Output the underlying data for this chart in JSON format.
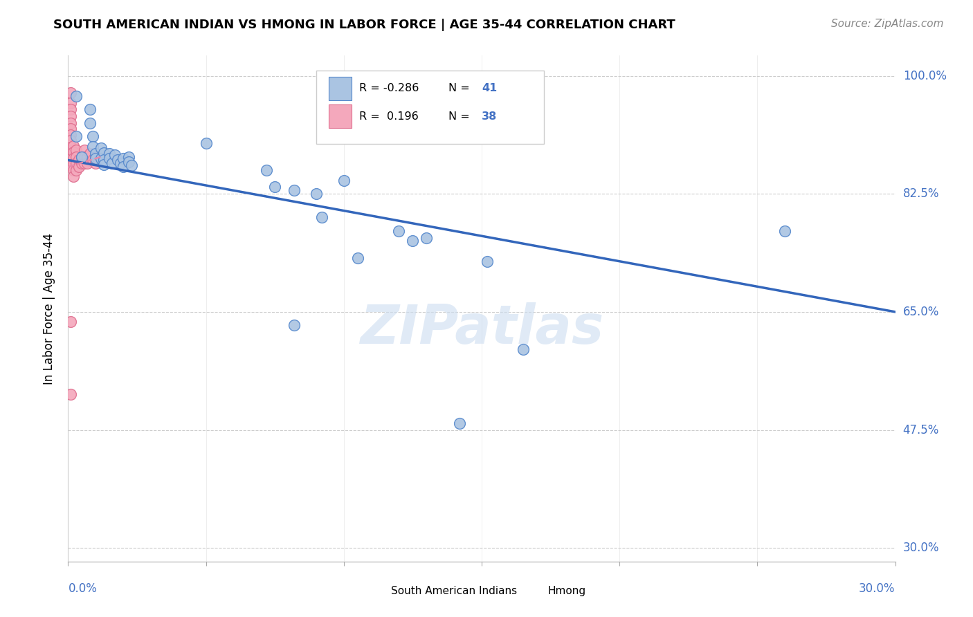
{
  "title": "SOUTH AMERICAN INDIAN VS HMONG IN LABOR FORCE | AGE 35-44 CORRELATION CHART",
  "source": "Source: ZipAtlas.com",
  "ylabel": "In Labor Force | Age 35-44",
  "xlim": [
    0.0,
    0.3
  ],
  "ylim": [
    0.28,
    1.03
  ],
  "yticks": [
    0.3,
    0.475,
    0.65,
    0.825,
    1.0
  ],
  "ytick_labels": [
    "30.0%",
    "47.5%",
    "65.0%",
    "82.5%",
    "100.0%"
  ],
  "xtick_vals": [
    0.0,
    0.05,
    0.1,
    0.15,
    0.2,
    0.25,
    0.3
  ],
  "blue_r": -0.286,
  "blue_n": 41,
  "pink_r": 0.196,
  "pink_n": 38,
  "blue_color": "#aac4e2",
  "pink_color": "#f4a8bc",
  "blue_edge_color": "#5588cc",
  "pink_edge_color": "#e07090",
  "blue_line_color": "#3366bb",
  "pink_line_color": "#e88aaa",
  "grid_color": "#cccccc",
  "watermark": "ZIPatlas",
  "blue_scatter": [
    [
      0.003,
      0.97
    ],
    [
      0.003,
      0.91
    ],
    [
      0.005,
      0.88
    ],
    [
      0.008,
      0.95
    ],
    [
      0.008,
      0.93
    ],
    [
      0.009,
      0.91
    ],
    [
      0.009,
      0.895
    ],
    [
      0.01,
      0.885
    ],
    [
      0.01,
      0.878
    ],
    [
      0.012,
      0.893
    ],
    [
      0.012,
      0.878
    ],
    [
      0.013,
      0.886
    ],
    [
      0.013,
      0.875
    ],
    [
      0.013,
      0.868
    ],
    [
      0.015,
      0.885
    ],
    [
      0.015,
      0.877
    ],
    [
      0.016,
      0.87
    ],
    [
      0.017,
      0.883
    ],
    [
      0.018,
      0.875
    ],
    [
      0.019,
      0.87
    ],
    [
      0.02,
      0.878
    ],
    [
      0.02,
      0.865
    ],
    [
      0.022,
      0.88
    ],
    [
      0.022,
      0.872
    ],
    [
      0.023,
      0.867
    ],
    [
      0.05,
      0.9
    ],
    [
      0.072,
      0.86
    ],
    [
      0.075,
      0.835
    ],
    [
      0.082,
      0.83
    ],
    [
      0.09,
      0.825
    ],
    [
      0.092,
      0.79
    ],
    [
      0.1,
      0.845
    ],
    [
      0.105,
      0.73
    ],
    [
      0.12,
      0.77
    ],
    [
      0.125,
      0.755
    ],
    [
      0.13,
      0.76
    ],
    [
      0.152,
      0.725
    ],
    [
      0.165,
      0.595
    ],
    [
      0.26,
      0.77
    ],
    [
      0.082,
      0.63
    ],
    [
      0.142,
      0.485
    ]
  ],
  "pink_scatter": [
    [
      0.001,
      0.975
    ],
    [
      0.001,
      0.96
    ],
    [
      0.001,
      0.95
    ],
    [
      0.001,
      0.94
    ],
    [
      0.001,
      0.93
    ],
    [
      0.001,
      0.922
    ],
    [
      0.001,
      0.912
    ],
    [
      0.001,
      0.904
    ],
    [
      0.001,
      0.894
    ],
    [
      0.001,
      0.885
    ],
    [
      0.001,
      0.876
    ],
    [
      0.001,
      0.867
    ],
    [
      0.002,
      0.896
    ],
    [
      0.002,
      0.887
    ],
    [
      0.002,
      0.878
    ],
    [
      0.002,
      0.869
    ],
    [
      0.002,
      0.86
    ],
    [
      0.002,
      0.851
    ],
    [
      0.003,
      0.89
    ],
    [
      0.003,
      0.88
    ],
    [
      0.003,
      0.87
    ],
    [
      0.003,
      0.86
    ],
    [
      0.004,
      0.875
    ],
    [
      0.004,
      0.865
    ],
    [
      0.005,
      0.88
    ],
    [
      0.005,
      0.87
    ],
    [
      0.006,
      0.89
    ],
    [
      0.006,
      0.88
    ],
    [
      0.006,
      0.87
    ],
    [
      0.007,
      0.88
    ],
    [
      0.007,
      0.87
    ],
    [
      0.008,
      0.885
    ],
    [
      0.009,
      0.875
    ],
    [
      0.01,
      0.88
    ],
    [
      0.01,
      0.87
    ],
    [
      0.011,
      0.875
    ],
    [
      0.001,
      0.636
    ],
    [
      0.001,
      0.528
    ]
  ],
  "blue_trend_x": [
    0.0,
    0.3
  ],
  "blue_trend_y": [
    0.875,
    0.65
  ],
  "pink_trend_x": [
    0.0,
    0.012
  ],
  "pink_trend_y": [
    0.865,
    0.88
  ]
}
